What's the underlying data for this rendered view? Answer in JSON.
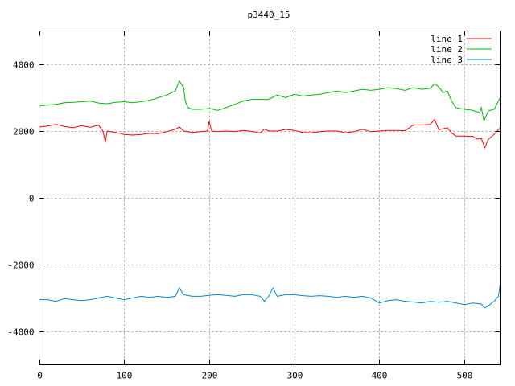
{
  "chart_data": {
    "type": "line",
    "title": "p3440_15",
    "xlabel": "",
    "ylabel": "",
    "xlim": [
      0,
      542
    ],
    "ylim": [
      -5000,
      5000
    ],
    "xticks": [
      0,
      100,
      200,
      300,
      400,
      500
    ],
    "yticks": [
      -4000,
      -2000,
      0,
      2000,
      4000
    ],
    "grid": true,
    "legend": "top-right",
    "series": [
      {
        "name": "line 1",
        "color": "#ff0000",
        "points": [
          [
            0,
            2120
          ],
          [
            10,
            2150
          ],
          [
            20,
            2200
          ],
          [
            30,
            2140
          ],
          [
            40,
            2100
          ],
          [
            50,
            2160
          ],
          [
            60,
            2110
          ],
          [
            70,
            2180
          ],
          [
            75,
            2000
          ],
          [
            78,
            1680
          ],
          [
            80,
            2000
          ],
          [
            90,
            1960
          ],
          [
            100,
            1900
          ],
          [
            110,
            1880
          ],
          [
            120,
            1900
          ],
          [
            130,
            1930
          ],
          [
            140,
            1920
          ],
          [
            150,
            1980
          ],
          [
            160,
            2050
          ],
          [
            165,
            2120
          ],
          [
            170,
            2000
          ],
          [
            180,
            1960
          ],
          [
            190,
            1980
          ],
          [
            198,
            2000
          ],
          [
            200,
            2300
          ],
          [
            203,
            2000
          ],
          [
            210,
            1980
          ],
          [
            220,
            2000
          ],
          [
            230,
            1980
          ],
          [
            240,
            2020
          ],
          [
            250,
            1990
          ],
          [
            260,
            1940
          ],
          [
            265,
            2060
          ],
          [
            270,
            2000
          ],
          [
            280,
            2000
          ],
          [
            290,
            2050
          ],
          [
            300,
            2020
          ],
          [
            310,
            1960
          ],
          [
            320,
            1950
          ],
          [
            330,
            1980
          ],
          [
            340,
            2000
          ],
          [
            350,
            2000
          ],
          [
            360,
            1950
          ],
          [
            370,
            1980
          ],
          [
            380,
            2050
          ],
          [
            390,
            1980
          ],
          [
            400,
            2000
          ],
          [
            410,
            2020
          ],
          [
            420,
            2020
          ],
          [
            430,
            2010
          ],
          [
            440,
            2180
          ],
          [
            450,
            2180
          ],
          [
            460,
            2200
          ],
          [
            465,
            2350
          ],
          [
            470,
            2040
          ],
          [
            480,
            2100
          ],
          [
            485,
            1950
          ],
          [
            490,
            1850
          ],
          [
            500,
            1850
          ],
          [
            510,
            1840
          ],
          [
            515,
            1760
          ],
          [
            520,
            1780
          ],
          [
            524,
            1500
          ],
          [
            528,
            1750
          ],
          [
            535,
            1900
          ],
          [
            542,
            2100
          ]
        ]
      },
      {
        "name": "line 2",
        "color": "#00bb00",
        "points": [
          [
            0,
            2750
          ],
          [
            10,
            2780
          ],
          [
            20,
            2800
          ],
          [
            30,
            2850
          ],
          [
            40,
            2860
          ],
          [
            50,
            2880
          ],
          [
            60,
            2900
          ],
          [
            70,
            2840
          ],
          [
            80,
            2820
          ],
          [
            90,
            2860
          ],
          [
            100,
            2880
          ],
          [
            110,
            2850
          ],
          [
            120,
            2880
          ],
          [
            130,
            2920
          ],
          [
            140,
            3000
          ],
          [
            150,
            3080
          ],
          [
            160,
            3200
          ],
          [
            165,
            3500
          ],
          [
            170,
            3300
          ],
          [
            172,
            2900
          ],
          [
            175,
            2700
          ],
          [
            180,
            2650
          ],
          [
            190,
            2650
          ],
          [
            200,
            2680
          ],
          [
            210,
            2620
          ],
          [
            220,
            2700
          ],
          [
            230,
            2800
          ],
          [
            240,
            2900
          ],
          [
            250,
            2950
          ],
          [
            260,
            2950
          ],
          [
            270,
            2950
          ],
          [
            280,
            3080
          ],
          [
            290,
            3000
          ],
          [
            300,
            3100
          ],
          [
            310,
            3050
          ],
          [
            320,
            3080
          ],
          [
            330,
            3100
          ],
          [
            340,
            3150
          ],
          [
            350,
            3200
          ],
          [
            360,
            3150
          ],
          [
            370,
            3200
          ],
          [
            380,
            3250
          ],
          [
            390,
            3220
          ],
          [
            400,
            3250
          ],
          [
            410,
            3300
          ],
          [
            420,
            3270
          ],
          [
            430,
            3220
          ],
          [
            440,
            3300
          ],
          [
            450,
            3250
          ],
          [
            460,
            3280
          ],
          [
            465,
            3420
          ],
          [
            470,
            3320
          ],
          [
            475,
            3150
          ],
          [
            480,
            3200
          ],
          [
            485,
            2900
          ],
          [
            490,
            2700
          ],
          [
            500,
            2650
          ],
          [
            510,
            2620
          ],
          [
            518,
            2550
          ],
          [
            520,
            2700
          ],
          [
            523,
            2300
          ],
          [
            528,
            2600
          ],
          [
            535,
            2650
          ],
          [
            542,
            3000
          ]
        ]
      },
      {
        "name": "line 3",
        "color": "#0088dd",
        "points": [
          [
            0,
            -3050
          ],
          [
            10,
            -3050
          ],
          [
            20,
            -3100
          ],
          [
            30,
            -3020
          ],
          [
            40,
            -3050
          ],
          [
            50,
            -3080
          ],
          [
            60,
            -3050
          ],
          [
            70,
            -3000
          ],
          [
            80,
            -2950
          ],
          [
            90,
            -3000
          ],
          [
            100,
            -3050
          ],
          [
            110,
            -3000
          ],
          [
            120,
            -2950
          ],
          [
            130,
            -2980
          ],
          [
            140,
            -2950
          ],
          [
            150,
            -2980
          ],
          [
            160,
            -2950
          ],
          [
            165,
            -2700
          ],
          [
            170,
            -2900
          ],
          [
            180,
            -2950
          ],
          [
            190,
            -2950
          ],
          [
            200,
            -2920
          ],
          [
            210,
            -2900
          ],
          [
            220,
            -2920
          ],
          [
            230,
            -2950
          ],
          [
            240,
            -2900
          ],
          [
            250,
            -2900
          ],
          [
            260,
            -2950
          ],
          [
            265,
            -3100
          ],
          [
            270,
            -2950
          ],
          [
            275,
            -2700
          ],
          [
            280,
            -2950
          ],
          [
            290,
            -2900
          ],
          [
            300,
            -2900
          ],
          [
            310,
            -2930
          ],
          [
            320,
            -2950
          ],
          [
            330,
            -2930
          ],
          [
            340,
            -2950
          ],
          [
            350,
            -2980
          ],
          [
            360,
            -2950
          ],
          [
            370,
            -2980
          ],
          [
            380,
            -2950
          ],
          [
            390,
            -3000
          ],
          [
            400,
            -3150
          ],
          [
            410,
            -3080
          ],
          [
            420,
            -3050
          ],
          [
            430,
            -3100
          ],
          [
            440,
            -3120
          ],
          [
            450,
            -3150
          ],
          [
            460,
            -3100
          ],
          [
            470,
            -3130
          ],
          [
            480,
            -3100
          ],
          [
            490,
            -3150
          ],
          [
            500,
            -3200
          ],
          [
            510,
            -3150
          ],
          [
            520,
            -3180
          ],
          [
            524,
            -3300
          ],
          [
            530,
            -3200
          ],
          [
            535,
            -3100
          ],
          [
            540,
            -2950
          ],
          [
            542,
            -2600
          ]
        ]
      }
    ]
  }
}
